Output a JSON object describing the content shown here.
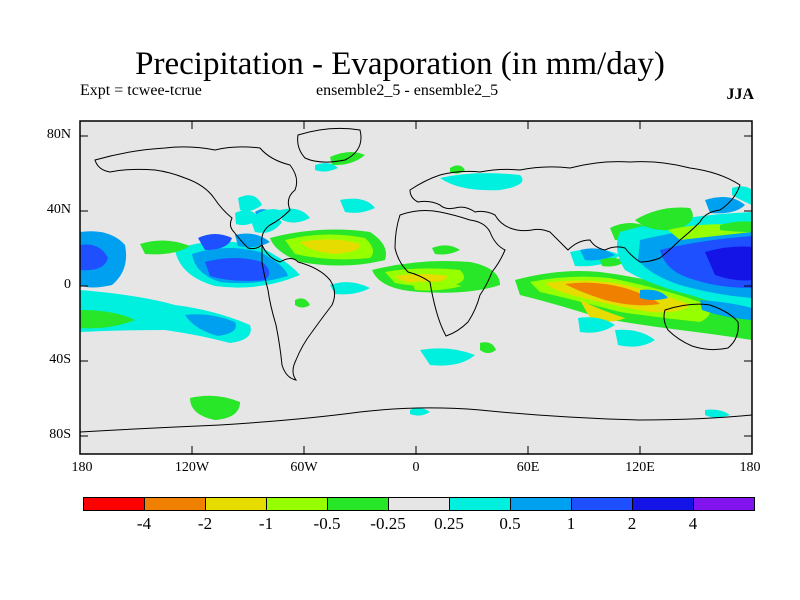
{
  "header": {
    "title": "Precipitation - Evaporation (in mm/day)",
    "expt": "Expt = tcwee-tcrue",
    "ensemble": "ensemble2_5 - ensemble2_5",
    "season": "JJA"
  },
  "map": {
    "projection": "cylindrical equidistant",
    "lat_labels": [
      "80N",
      "40N",
      "0",
      "40S",
      "80S"
    ],
    "lon_labels": [
      "180",
      "120W",
      "60W",
      "0",
      "60E",
      "120E",
      "180"
    ],
    "background_color": "#e6e6e6"
  },
  "legend": {
    "colors": [
      "#ff0000",
      "#f08000",
      "#e6dc00",
      "#96ff00",
      "#28e628",
      "#e6e6e6",
      "#00f0e0",
      "#00a0f0",
      "#1e50ff",
      "#1414e6",
      "#8214f0"
    ],
    "labels": [
      "-4",
      "-2",
      "-1",
      "-0.5",
      "-0.25",
      "0.25",
      "0.5",
      "1",
      "2",
      "4"
    ]
  }
}
